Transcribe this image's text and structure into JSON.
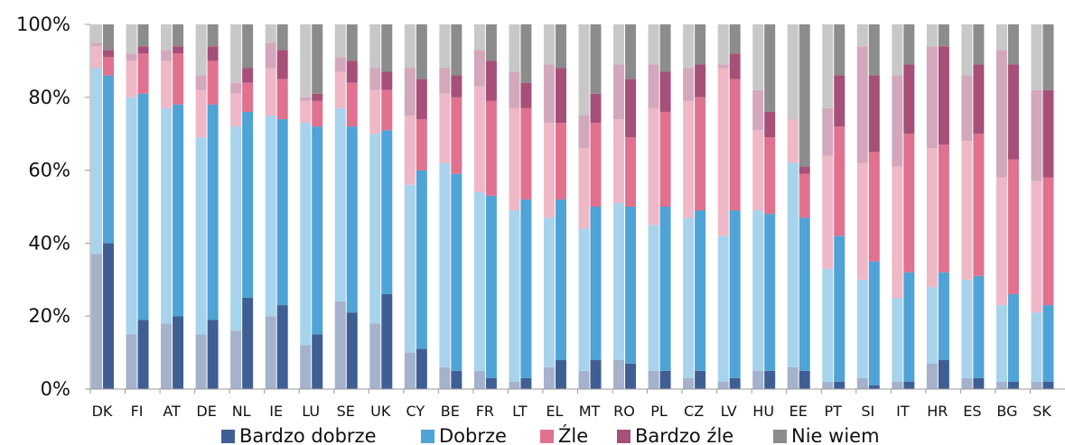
{
  "chart_data": {
    "type": "bar",
    "stacked": true,
    "paired_bars": true,
    "categories": [
      "DK",
      "FI",
      "AT",
      "DE",
      "NL",
      "IE",
      "LU",
      "SE",
      "UK",
      "CY",
      "BE",
      "FR",
      "LT",
      "EL",
      "MT",
      "RO",
      "PL",
      "CZ",
      "LV",
      "HU",
      "EE",
      "PT",
      "SI",
      "IT",
      "HR",
      "ES",
      "BG",
      "SK"
    ],
    "y_ticks": [
      "0%",
      "20%",
      "40%",
      "60%",
      "80%",
      "100%"
    ],
    "ylim": [
      0,
      100
    ],
    "grid": false,
    "legend_position": "bottom",
    "series": [
      {
        "name": "Bardzo dobrze",
        "color": "#3f5f94",
        "light_color": "#a4b2cb",
        "prev": [
          37,
          15,
          18,
          15,
          16,
          20,
          12,
          24,
          18,
          10,
          6,
          5,
          2,
          6,
          5,
          8,
          5,
          3,
          2,
          5,
          6,
          2,
          3,
          2,
          7,
          3,
          2,
          2
        ],
        "curr": [
          40,
          19,
          20,
          19,
          25,
          23,
          15,
          21,
          26,
          11,
          5,
          3,
          3,
          8,
          8,
          7,
          5,
          5,
          3,
          5,
          5,
          2,
          1,
          2,
          8,
          3,
          2,
          2
        ]
      },
      {
        "name": "Dobrze",
        "color": "#4fa3d6",
        "light_color": "#a8d3ec",
        "prev": [
          51,
          65,
          59,
          54,
          56,
          55,
          61,
          53,
          52,
          46,
          56,
          49,
          47,
          41,
          39,
          43,
          40,
          44,
          40,
          44,
          56,
          31,
          27,
          23,
          21,
          27,
          21,
          19
        ],
        "curr": [
          46,
          62,
          58,
          59,
          51,
          51,
          57,
          51,
          45,
          49,
          54,
          50,
          49,
          44,
          42,
          43,
          45,
          44,
          46,
          43,
          42,
          40,
          34,
          30,
          24,
          28,
          24,
          21
        ]
      },
      {
        "name": "Źle",
        "color": "#e0728f",
        "light_color": "#efb8c6",
        "prev": [
          6,
          10,
          13,
          13,
          9,
          13,
          6,
          10,
          12,
          19,
          19,
          29,
          28,
          26,
          22,
          23,
          32,
          32,
          46,
          22,
          12,
          31,
          32,
          36,
          38,
          38,
          35,
          36
        ],
        "curr": [
          5,
          11,
          14,
          12,
          8,
          11,
          7,
          12,
          11,
          14,
          21,
          26,
          25,
          21,
          23,
          19,
          26,
          31,
          36,
          21,
          12,
          30,
          30,
          38,
          35,
          39,
          37,
          35
        ]
      },
      {
        "name": "Bardzo źle",
        "color": "#a64f78",
        "light_color": "#d3a7bc",
        "prev": [
          1,
          2,
          3,
          4,
          3,
          7,
          1,
          4,
          6,
          13,
          7,
          10,
          10,
          16,
          9,
          15,
          12,
          9,
          1,
          11,
          0,
          13,
          32,
          25,
          28,
          18,
          35,
          25
        ],
        "curr": [
          2,
          2,
          2,
          4,
          4,
          8,
          2,
          6,
          5,
          11,
          6,
          11,
          7,
          15,
          8,
          16,
          11,
          9,
          7,
          7,
          2,
          14,
          21,
          19,
          27,
          19,
          26,
          24
        ]
      },
      {
        "name": "Nie wiem",
        "color": "#8c8c8c",
        "light_color": "#c8c8c8",
        "prev": [
          5,
          8,
          7,
          14,
          16,
          5,
          20,
          9,
          12,
          12,
          12,
          7,
          13,
          11,
          25,
          11,
          11,
          12,
          11,
          18,
          26,
          23,
          6,
          14,
          6,
          14,
          7,
          18
        ],
        "curr": [
          7,
          6,
          6,
          6,
          12,
          7,
          19,
          10,
          13,
          15,
          14,
          10,
          16,
          12,
          19,
          15,
          13,
          11,
          8,
          24,
          39,
          14,
          14,
          11,
          6,
          11,
          11,
          18
        ]
      }
    ]
  }
}
